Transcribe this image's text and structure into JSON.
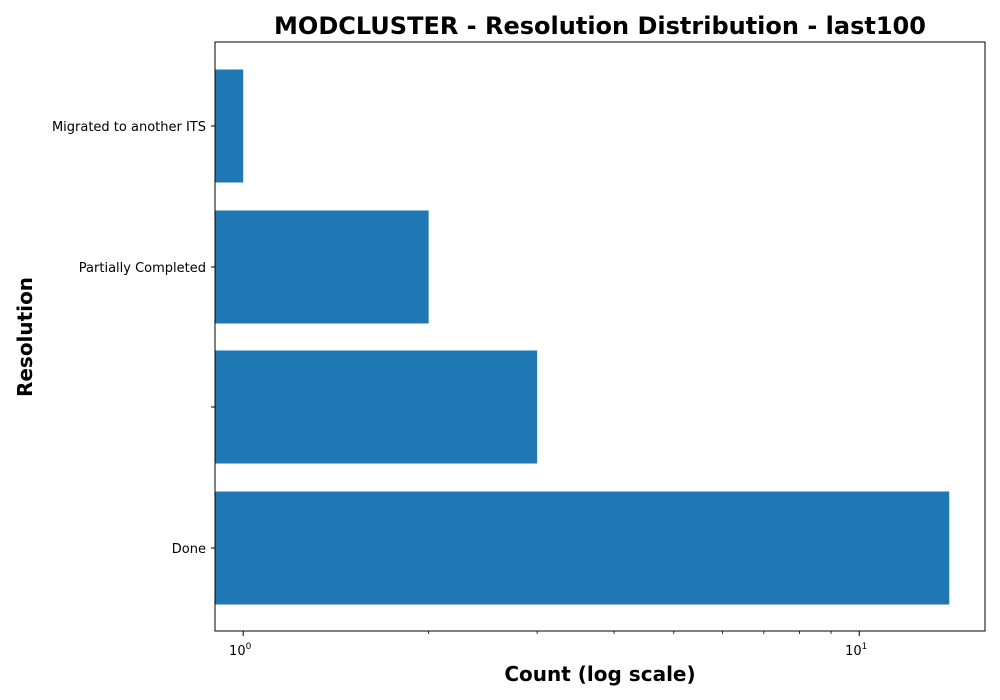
{
  "chart_data": {
    "type": "bar",
    "orientation": "horizontal",
    "title": "MODCLUSTER - Resolution Distribution - last100",
    "xlabel": "Count (log scale)",
    "ylabel": "Resolution",
    "x_scale": "log",
    "xlim": [
      0.9,
      16
    ],
    "x_ticks": [
      {
        "value": 1,
        "label": "10",
        "exponent": "0"
      },
      {
        "value": 10,
        "label": "10",
        "exponent": "1"
      }
    ],
    "categories": [
      "Migrated to another ITS",
      "Partially Completed",
      "",
      "Done"
    ],
    "values": [
      1,
      2,
      3,
      14
    ],
    "color": "#1f77b4",
    "grid": false,
    "legend": "none"
  }
}
